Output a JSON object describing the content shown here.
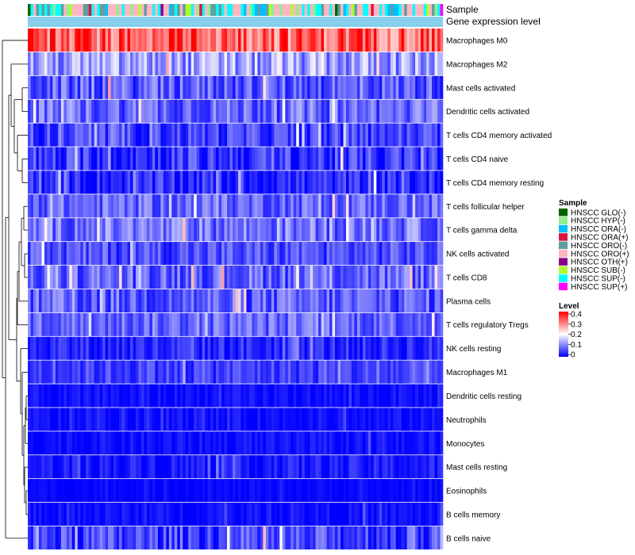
{
  "chart_data": {
    "type": "heatmap",
    "title": "",
    "annotation_rows": [
      "Sample",
      "Gene expression level"
    ],
    "rows": [
      {
        "label": "Macrophages M0",
        "mean": 0.33,
        "spread": 0.09
      },
      {
        "label": "Macrophages M2",
        "mean": 0.12,
        "spread": 0.07
      },
      {
        "label": "Mast cells activated",
        "mean": 0.07,
        "spread": 0.06
      },
      {
        "label": "Dendritic cells activated",
        "mean": 0.08,
        "spread": 0.06
      },
      {
        "label": "T cells CD4 memory activated",
        "mean": 0.05,
        "spread": 0.05
      },
      {
        "label": "T cells CD4 naive",
        "mean": 0.04,
        "spread": 0.06
      },
      {
        "label": "T cells CD4 memory resting",
        "mean": 0.03,
        "spread": 0.05
      },
      {
        "label": "T cells follicular helper",
        "mean": 0.08,
        "spread": 0.05
      },
      {
        "label": "T cells gamma delta",
        "mean": 0.09,
        "spread": 0.06
      },
      {
        "label": "NK cells activated",
        "mean": 0.06,
        "spread": 0.05
      },
      {
        "label": "T cells CD8",
        "mean": 0.08,
        "spread": 0.06
      },
      {
        "label": "Plasma cells",
        "mean": 0.07,
        "spread": 0.06
      },
      {
        "label": "T cells regulatory  Tregs",
        "mean": 0.08,
        "spread": 0.05
      },
      {
        "label": "NK cells resting",
        "mean": 0.03,
        "spread": 0.04
      },
      {
        "label": "Macrophages M1",
        "mean": 0.05,
        "spread": 0.04
      },
      {
        "label": "Dendritic cells resting",
        "mean": 0.01,
        "spread": 0.02
      },
      {
        "label": "Neutrophils",
        "mean": 0.01,
        "spread": 0.02
      },
      {
        "label": "Monocytes",
        "mean": 0.01,
        "spread": 0.02
      },
      {
        "label": "Mast cells resting",
        "mean": 0.02,
        "spread": 0.03
      },
      {
        "label": "Eosinophils",
        "mean": 0.005,
        "spread": 0.01
      },
      {
        "label": "B cells memory",
        "mean": 0.01,
        "spread": 0.02
      },
      {
        "label": "B cells naive",
        "mean": 0.05,
        "spread": 0.06
      }
    ],
    "n_samples": 150,
    "color_scale": {
      "min": 0,
      "max": 0.4,
      "stops": [
        {
          "value": 0,
          "color": "#0000ff"
        },
        {
          "value": 0.2,
          "color": "#ffffff"
        },
        {
          "value": 0.4,
          "color": "#ff0000"
        }
      ]
    },
    "legend_sample": {
      "title": "Sample",
      "items": [
        {
          "label": "HNSCC GLO(-)",
          "color": "#006400"
        },
        {
          "label": "HNSCC HYP(-)",
          "color": "#90ee90"
        },
        {
          "label": "HNSCC ORA(-)",
          "color": "#00bfff"
        },
        {
          "label": "HNSCC ORA(+)",
          "color": "#dc143c"
        },
        {
          "label": "HNSCC ORO(-)",
          "color": "#5f9ea0"
        },
        {
          "label": "HNSCC ORO(+)",
          "color": "#ffb6c1"
        },
        {
          "label": "HNSCC OTH(+)",
          "color": "#8b008b"
        },
        {
          "label": "HNSCC SUB(-)",
          "color": "#adff2f"
        },
        {
          "label": "HNSCC SUP(-)",
          "color": "#00ffff"
        },
        {
          "label": "HNSCC SUP(+)",
          "color": "#ff00ff"
        }
      ],
      "sample_weights": [
        0.01,
        0.07,
        0.1,
        0.03,
        0.12,
        0.35,
        0.01,
        0.03,
        0.26,
        0.02
      ]
    },
    "legend_level": {
      "title": "Level",
      "ticks": [
        "0.4",
        "0.3",
        "0.2",
        "0.1",
        "0"
      ]
    },
    "expression_bar_color": "#87ceeb"
  }
}
